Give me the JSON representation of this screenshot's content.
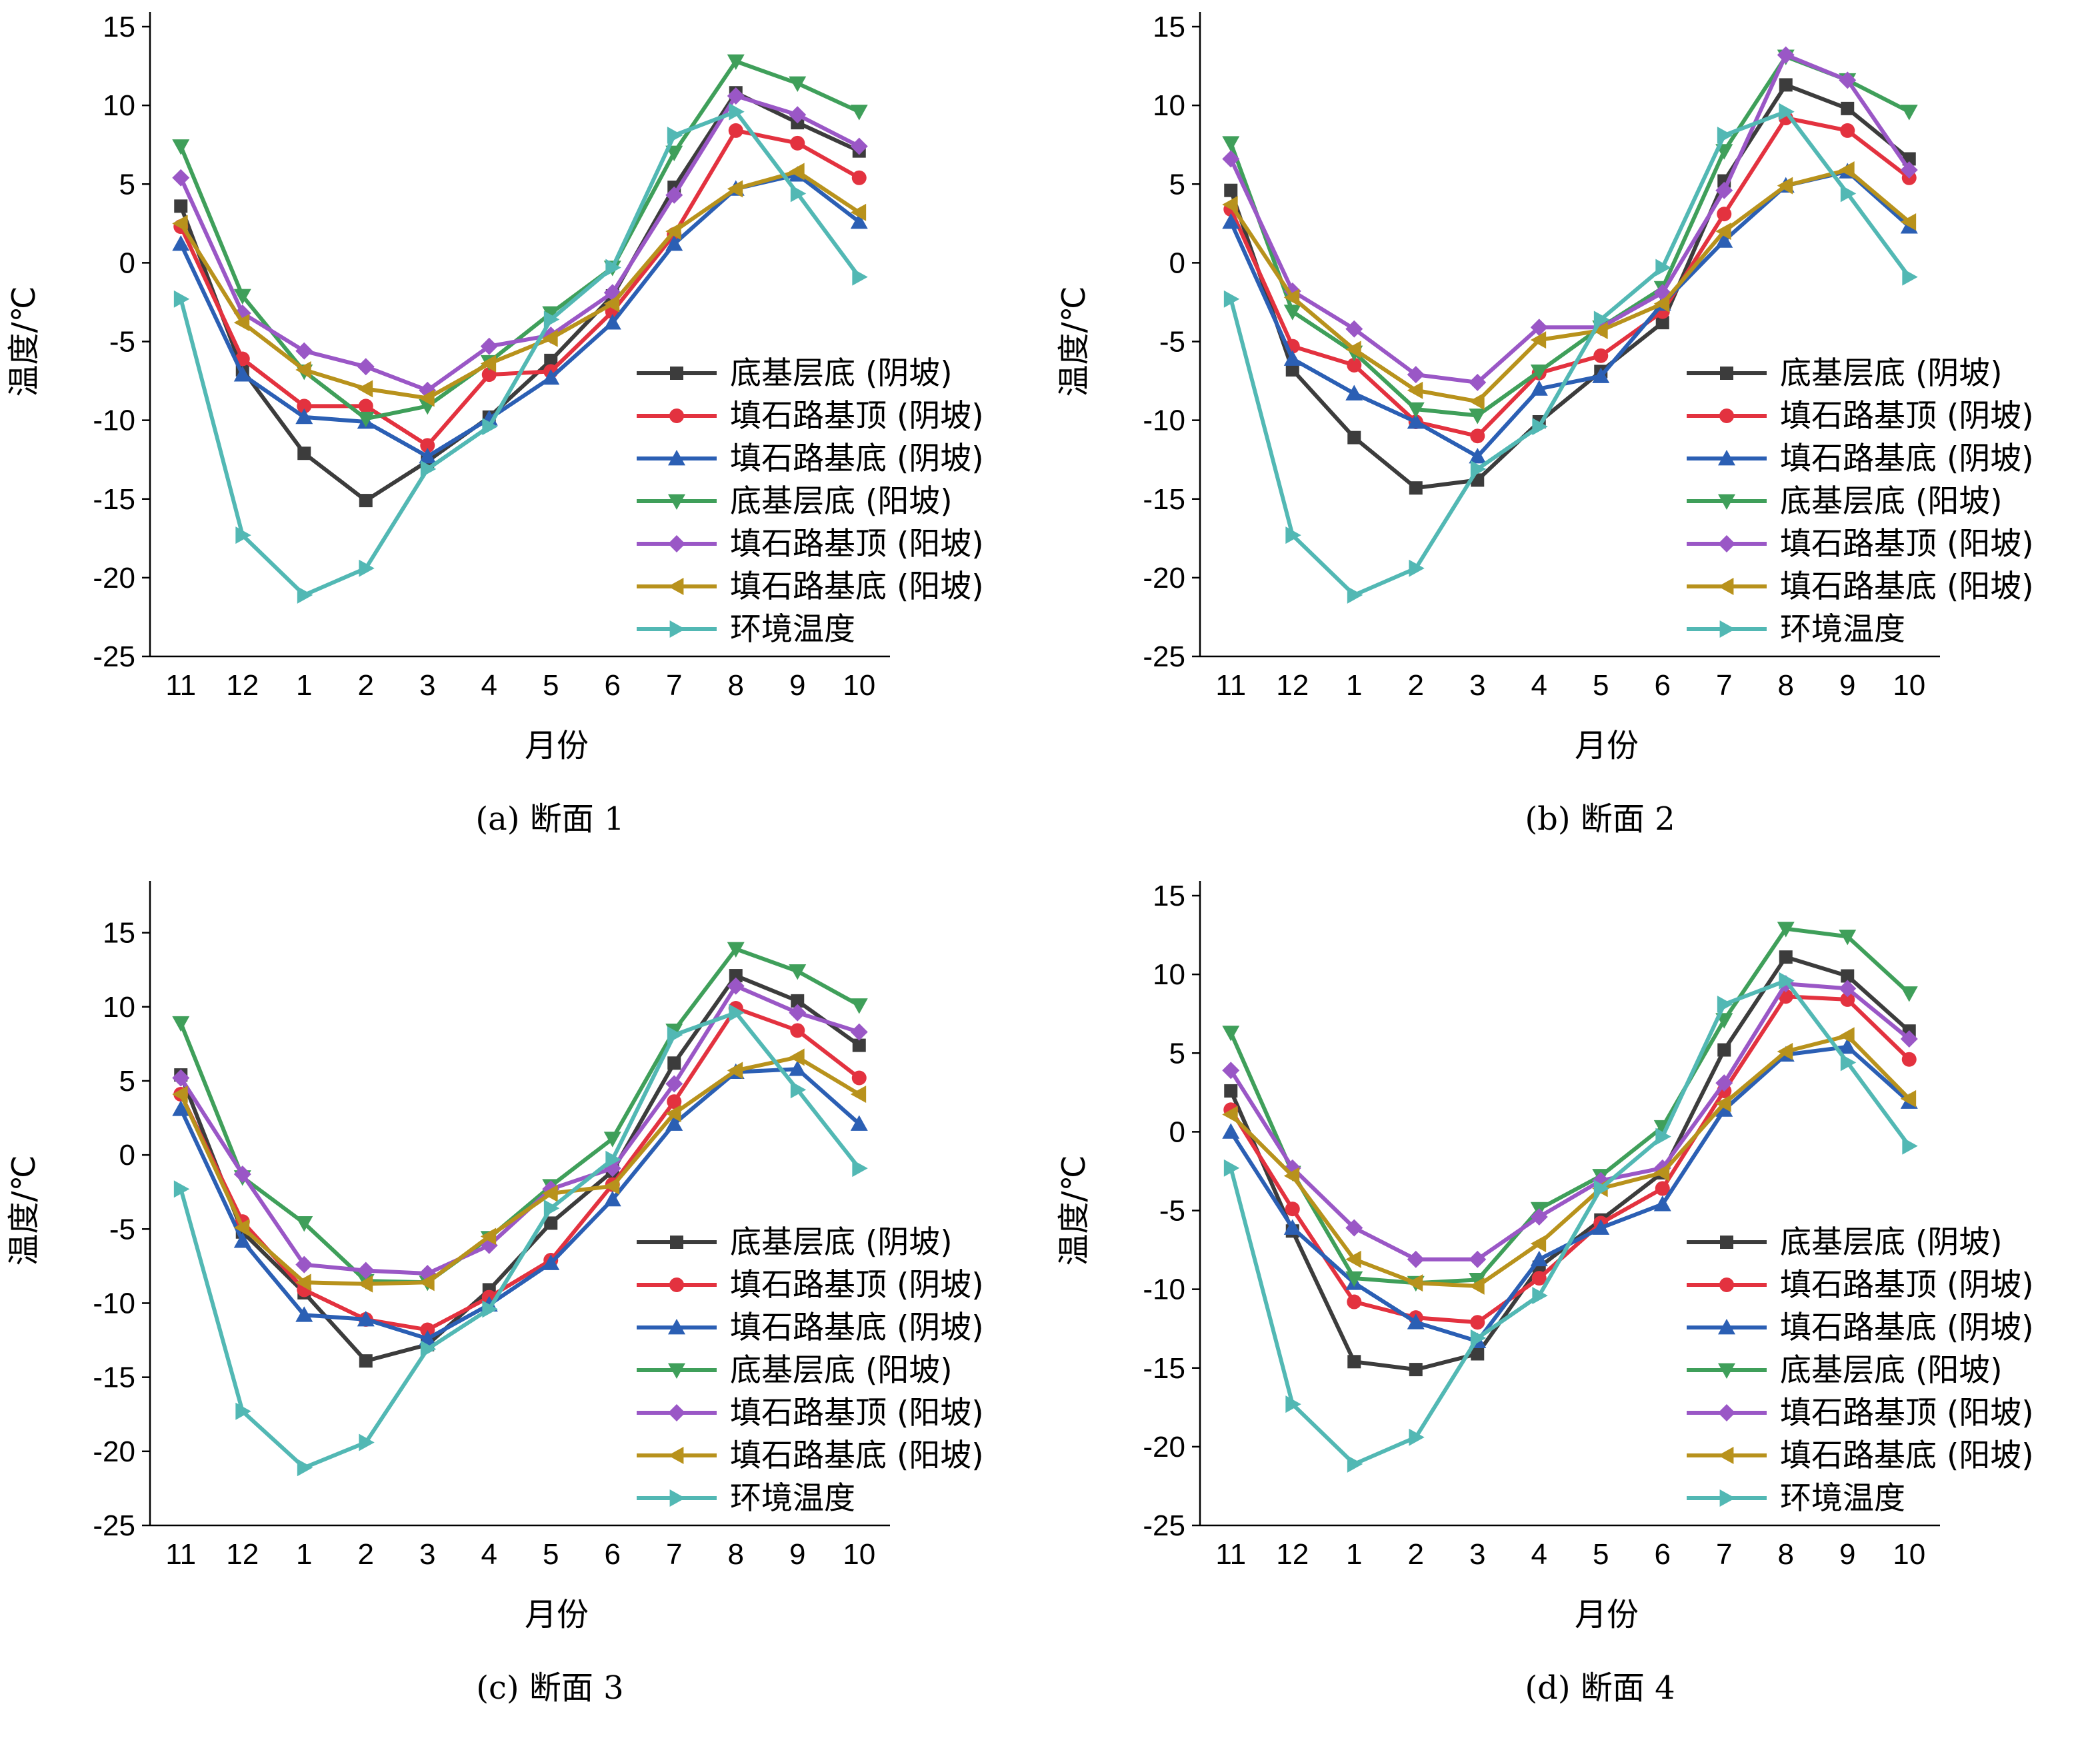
{
  "chart_data": [
    {
      "type": "line",
      "caption": "(a) 断面 1",
      "xlabel": "月份",
      "ylabel": "温度/℃",
      "categories": [
        "11",
        "12",
        "1",
        "2",
        "3",
        "4",
        "5",
        "6",
        "7",
        "8",
        "9",
        "10"
      ],
      "ylim": [
        -25,
        15
      ],
      "yticks": [
        -25,
        -20,
        -15,
        -10,
        -5,
        0,
        5,
        10,
        15
      ],
      "series": [
        {
          "name": "底基层底 (阴坡)",
          "color": "#3c3c3c",
          "marker": "square",
          "values": [
            3.6,
            -6.8,
            -12.1,
            -15.1,
            -12.6,
            -9.8,
            -6.2,
            -2.1,
            4.8,
            10.8,
            8.9,
            7.1
          ]
        },
        {
          "name": "填石路基顶 (阴坡)",
          "color": "#e3323f",
          "marker": "circle",
          "values": [
            2.3,
            -6.1,
            -9.1,
            -9.1,
            -11.6,
            -7.1,
            -6.9,
            -3.1,
            1.8,
            8.4,
            7.6,
            5.4
          ]
        },
        {
          "name": "填石路基底 (阴坡)",
          "color": "#2b5fb4",
          "marker": "triangle-up",
          "values": [
            1.2,
            -7.1,
            -9.8,
            -10.1,
            -12.3,
            -9.9,
            -7.3,
            -3.8,
            1.2,
            4.7,
            5.6,
            2.6
          ]
        },
        {
          "name": "底基层底 (阳坡)",
          "color": "#3f9f5a",
          "marker": "triangle-down",
          "values": [
            7.4,
            -2.1,
            -6.9,
            -9.9,
            -9.1,
            -6.3,
            -3.2,
            -0.3,
            7.0,
            12.8,
            11.4,
            9.6
          ]
        },
        {
          "name": "填石路基顶 (阳坡)",
          "color": "#9a57c6",
          "marker": "diamond",
          "values": [
            5.4,
            -3.2,
            -5.6,
            -6.6,
            -8.1,
            -5.3,
            -4.6,
            -1.9,
            4.3,
            10.6,
            9.4,
            7.4
          ]
        },
        {
          "name": "填石路基底 (阳坡)",
          "color": "#b8921c",
          "marker": "triangle-left",
          "values": [
            2.5,
            -3.8,
            -6.8,
            -8.0,
            -8.6,
            -6.4,
            -4.8,
            -2.6,
            2.0,
            4.7,
            5.8,
            3.2
          ]
        },
        {
          "name": "环境温度",
          "color": "#52b8b4",
          "marker": "triangle-right",
          "values": [
            -2.3,
            -17.3,
            -21.1,
            -19.4,
            -13.1,
            -10.4,
            -3.6,
            -0.3,
            8.1,
            9.6,
            4.4,
            -0.9
          ]
        }
      ]
    },
    {
      "type": "line",
      "caption": "(b) 断面 2",
      "xlabel": "月份",
      "ylabel": "温度/℃",
      "categories": [
        "11",
        "12",
        "1",
        "2",
        "3",
        "4",
        "5",
        "6",
        "7",
        "8",
        "9",
        "10"
      ],
      "ylim": [
        -25,
        15
      ],
      "yticks": [
        -25,
        -20,
        -15,
        -10,
        -5,
        0,
        5,
        10,
        15
      ],
      "series": [
        {
          "name": "底基层底 (阴坡)",
          "color": "#3c3c3c",
          "marker": "square",
          "values": [
            4.6,
            -6.8,
            -11.1,
            -14.3,
            -13.8,
            -10.1,
            -6.9,
            -3.8,
            5.2,
            11.3,
            9.8,
            6.6
          ]
        },
        {
          "name": "填石路基顶 (阴坡)",
          "color": "#e3323f",
          "marker": "circle",
          "values": [
            3.4,
            -5.3,
            -6.5,
            -10.1,
            -11.0,
            -7.0,
            -5.9,
            -3.1,
            3.1,
            9.2,
            8.4,
            5.4
          ]
        },
        {
          "name": "填石路基底 (阴坡)",
          "color": "#2b5fb4",
          "marker": "triangle-up",
          "values": [
            2.6,
            -6.1,
            -8.3,
            -10.1,
            -12.3,
            -8.0,
            -7.2,
            -2.6,
            1.4,
            4.9,
            5.8,
            2.3
          ]
        },
        {
          "name": "底基层底 (阳坡)",
          "color": "#3f9f5a",
          "marker": "triangle-down",
          "values": [
            7.6,
            -3.1,
            -5.7,
            -9.3,
            -9.7,
            -6.9,
            -4.1,
            -1.6,
            7.1,
            13.1,
            11.6,
            9.6
          ]
        },
        {
          "name": "填石路基顶 (阳坡)",
          "color": "#9a57c6",
          "marker": "diamond",
          "values": [
            6.6,
            -1.8,
            -4.2,
            -7.1,
            -7.6,
            -4.1,
            -4.1,
            -1.9,
            4.6,
            13.2,
            11.6,
            5.9
          ]
        },
        {
          "name": "填石路基底 (阳坡)",
          "color": "#b8921c",
          "marker": "triangle-left",
          "values": [
            3.7,
            -2.2,
            -5.5,
            -8.1,
            -8.8,
            -4.9,
            -4.3,
            -2.6,
            2.0,
            4.9,
            5.9,
            2.6
          ]
        },
        {
          "name": "环境温度",
          "color": "#52b8b4",
          "marker": "triangle-right",
          "values": [
            -2.3,
            -17.3,
            -21.1,
            -19.4,
            -13.1,
            -10.4,
            -3.6,
            -0.3,
            8.1,
            9.6,
            4.4,
            -0.9
          ]
        }
      ]
    },
    {
      "type": "line",
      "caption": "(c) 断面 3",
      "xlabel": "月份",
      "ylabel": "温度/℃",
      "categories": [
        "11",
        "12",
        "1",
        "2",
        "3",
        "4",
        "5",
        "6",
        "7",
        "8",
        "9",
        "10"
      ],
      "ylim": [
        -25,
        17.5
      ],
      "yticks": [
        -25,
        -20,
        -15,
        -10,
        -5,
        0,
        5,
        10,
        15
      ],
      "series": [
        {
          "name": "底基层底 (阴坡)",
          "color": "#3c3c3c",
          "marker": "square",
          "values": [
            5.4,
            -5.2,
            -9.3,
            -13.9,
            -12.8,
            -9.1,
            -4.6,
            -1.1,
            6.2,
            12.1,
            10.4,
            7.4
          ]
        },
        {
          "name": "填石路基顶 (阴坡)",
          "color": "#e3323f",
          "marker": "circle",
          "values": [
            4.1,
            -4.5,
            -9.1,
            -11.1,
            -11.8,
            -9.6,
            -7.1,
            -2.0,
            3.6,
            9.9,
            8.4,
            5.2
          ]
        },
        {
          "name": "填石路基底 (阴坡)",
          "color": "#2b5fb4",
          "marker": "triangle-up",
          "values": [
            3.1,
            -5.8,
            -10.8,
            -11.1,
            -12.4,
            -10.1,
            -7.3,
            -3.0,
            2.1,
            5.6,
            5.8,
            2.1
          ]
        },
        {
          "name": "底基层底 (阳坡)",
          "color": "#3f9f5a",
          "marker": "triangle-down",
          "values": [
            8.9,
            -1.5,
            -4.6,
            -8.5,
            -8.6,
            -5.6,
            -2.1,
            1.1,
            8.4,
            13.9,
            12.4,
            10.1
          ]
        },
        {
          "name": "填石路基顶 (阳坡)",
          "color": "#9a57c6",
          "marker": "diamond",
          "values": [
            5.2,
            -1.3,
            -7.4,
            -7.8,
            -8.0,
            -6.1,
            -2.3,
            -0.9,
            4.8,
            11.4,
            9.6,
            8.3
          ]
        },
        {
          "name": "填石路基底 (阳坡)",
          "color": "#b8921c",
          "marker": "triangle-left",
          "values": [
            4.1,
            -4.9,
            -8.6,
            -8.7,
            -8.6,
            -5.5,
            -2.6,
            -2.1,
            2.8,
            5.7,
            6.6,
            4.1
          ]
        },
        {
          "name": "环境温度",
          "color": "#52b8b4",
          "marker": "triangle-right",
          "values": [
            -2.3,
            -17.3,
            -21.1,
            -19.4,
            -13.1,
            -10.4,
            -3.6,
            -0.3,
            8.1,
            9.6,
            4.4,
            -0.9
          ]
        }
      ]
    },
    {
      "type": "line",
      "caption": "(d) 断面 4",
      "xlabel": "月份",
      "ylabel": "温度/℃",
      "categories": [
        "11",
        "12",
        "1",
        "2",
        "3",
        "4",
        "5",
        "6",
        "7",
        "8",
        "9",
        "10"
      ],
      "ylim": [
        -25,
        15
      ],
      "yticks": [
        -25,
        -20,
        -15,
        -10,
        -5,
        0,
        5,
        10,
        15
      ],
      "series": [
        {
          "name": "底基层底 (阴坡)",
          "color": "#3c3c3c",
          "marker": "square",
          "values": [
            2.6,
            -6.3,
            -14.6,
            -15.1,
            -14.1,
            -8.6,
            -5.6,
            -2.6,
            5.2,
            11.1,
            9.9,
            6.4
          ]
        },
        {
          "name": "填石路基顶 (阴坡)",
          "color": "#e3323f",
          "marker": "circle",
          "values": [
            1.4,
            -4.9,
            -10.8,
            -11.8,
            -12.1,
            -9.3,
            -5.8,
            -3.6,
            2.6,
            8.6,
            8.4,
            4.6
          ]
        },
        {
          "name": "填石路基底 (阴坡)",
          "color": "#2b5fb4",
          "marker": "triangle-up",
          "values": [
            0.0,
            -6.1,
            -9.6,
            -12.1,
            -13.3,
            -8.1,
            -6.1,
            -4.6,
            1.4,
            4.9,
            5.4,
            1.9
          ]
        },
        {
          "name": "底基层底 (阳坡)",
          "color": "#3f9f5a",
          "marker": "triangle-down",
          "values": [
            6.3,
            -2.6,
            -9.3,
            -9.6,
            -9.4,
            -4.9,
            -2.8,
            0.3,
            7.1,
            12.9,
            12.4,
            8.8
          ]
        },
        {
          "name": "填石路基顶 (阳坡)",
          "color": "#9a57c6",
          "marker": "diamond",
          "values": [
            3.9,
            -2.3,
            -6.1,
            -8.1,
            -8.1,
            -5.4,
            -3.1,
            -2.3,
            3.1,
            9.4,
            9.1,
            5.9
          ]
        },
        {
          "name": "填石路基底 (阳坡)",
          "color": "#b8921c",
          "marker": "triangle-left",
          "values": [
            1.1,
            -2.8,
            -8.1,
            -9.6,
            -9.8,
            -7.1,
            -3.6,
            -2.6,
            1.8,
            5.1,
            6.1,
            2.1
          ]
        },
        {
          "name": "环境温度",
          "color": "#52b8b4",
          "marker": "triangle-right",
          "values": [
            -2.3,
            -17.3,
            -21.1,
            -19.4,
            -13.1,
            -10.4,
            -3.6,
            -0.3,
            8.1,
            9.6,
            4.4,
            -0.9
          ]
        }
      ]
    }
  ]
}
